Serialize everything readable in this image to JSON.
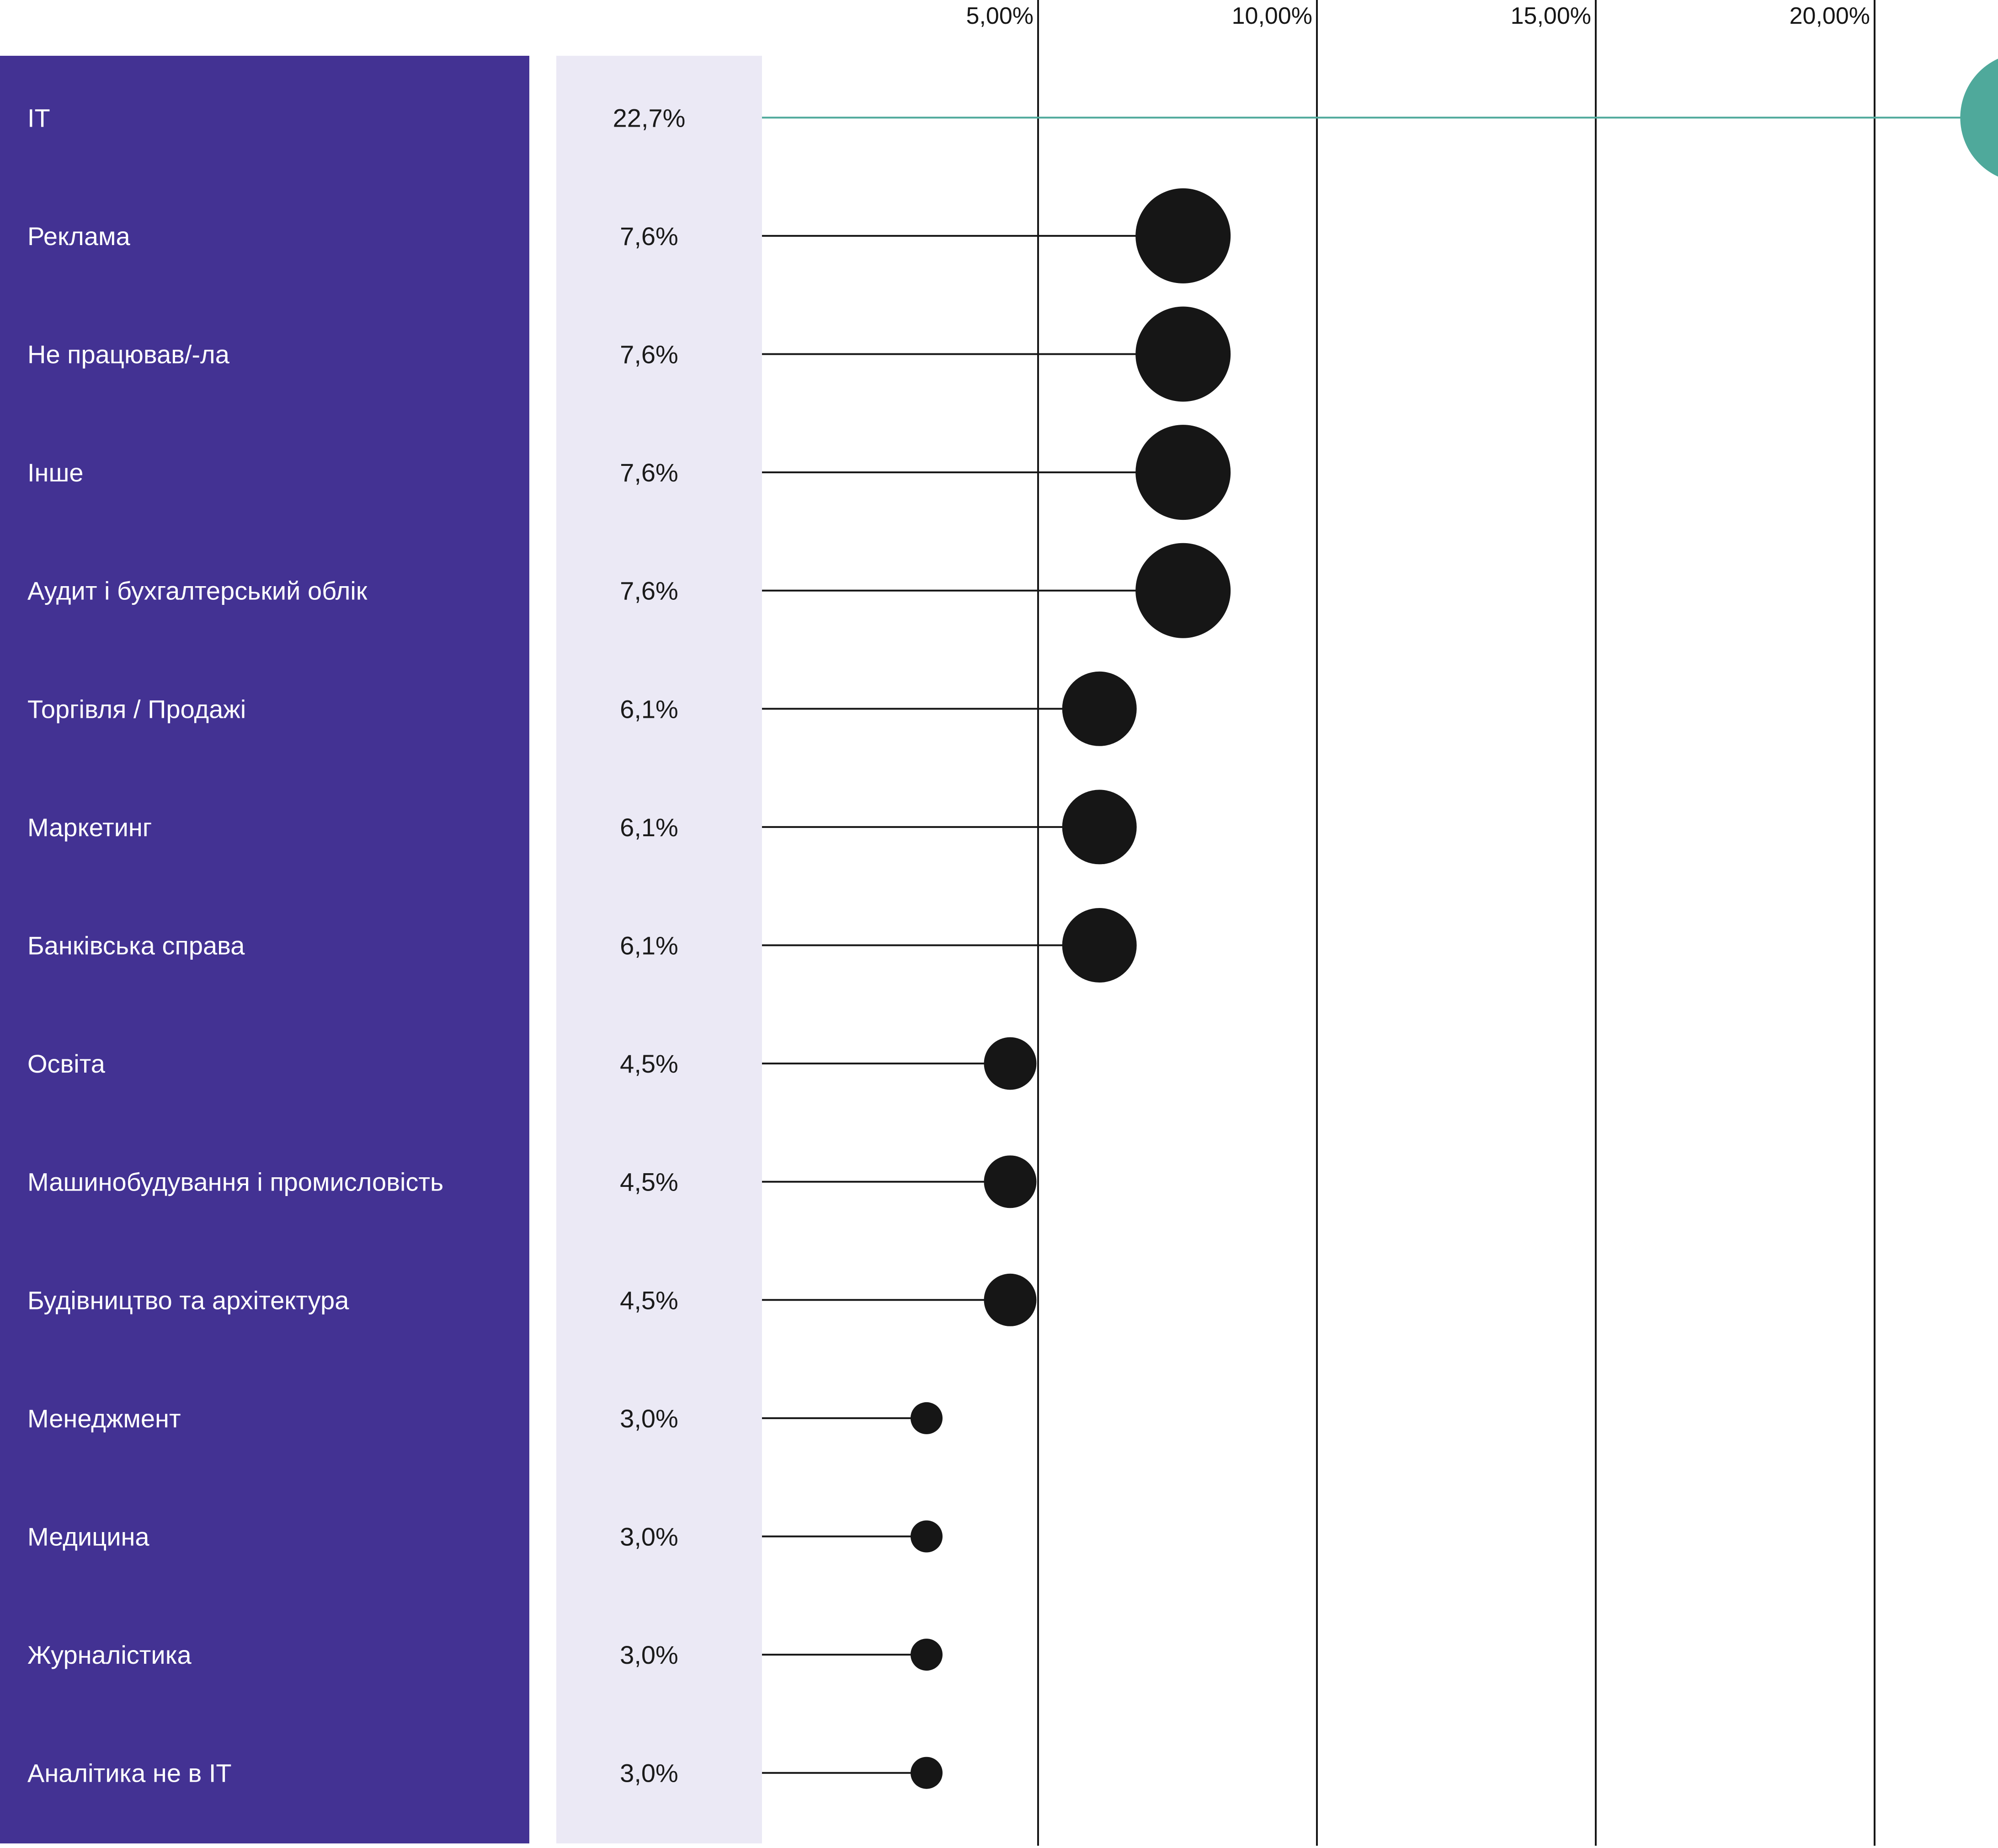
{
  "chart_data": {
    "type": "lollipop",
    "title": "",
    "xlabel": "",
    "ylabel": "",
    "xlim": [
      0,
      23
    ],
    "x_ticks": [
      {
        "value": 5,
        "label": "5,00%"
      },
      {
        "value": 10,
        "label": "10,00%"
      },
      {
        "value": 15,
        "label": "15,00%"
      },
      {
        "value": 20,
        "label": "20,00%"
      }
    ],
    "grid": "vertical lines at ticks",
    "categories": [
      "IT",
      "Реклама",
      "Не працював/-ла",
      "Інше",
      "Аудит і бухгалтерський облік",
      "Торгівля / Продажі",
      "Маркетинг",
      "Банківська справа",
      "Освіта",
      "Машинобудування і промисловість",
      "Будівництво та архітектура",
      "Менеджмент",
      "Медицина",
      "Журналістика",
      "Аналітика не в IT"
    ],
    "values": [
      22.7,
      7.6,
      7.6,
      7.6,
      7.6,
      6.1,
      6.1,
      6.1,
      4.5,
      4.5,
      4.5,
      3.0,
      3.0,
      3.0,
      3.0
    ],
    "value_labels": [
      "22,7%",
      "7,6%",
      "7,6%",
      "7,6%",
      "7,6%",
      "6,1%",
      "6,1%",
      "6,1%",
      "4,5%",
      "4,5%",
      "4,5%",
      "3,0%",
      "3,0%",
      "3,0%",
      "3,0%"
    ]
  },
  "colors": {
    "label_panel": "#433293",
    "label_text": "#ffffff",
    "value_panel": "#ebe9f5",
    "value_text": "#1a1a1a",
    "highlight": "#4fa99b",
    "dot": "#161616",
    "gridline": "#161616",
    "tick_text": "#161616"
  }
}
